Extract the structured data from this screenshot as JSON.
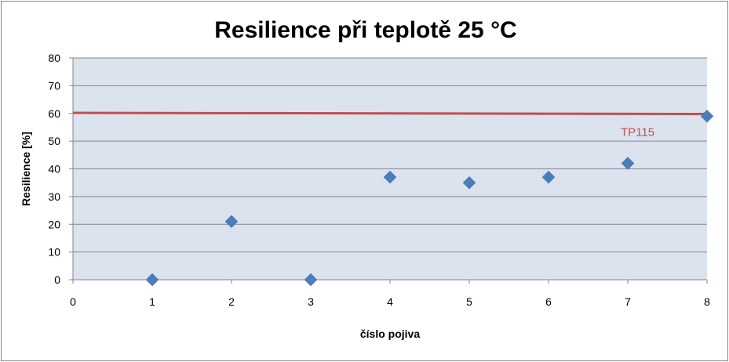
{
  "chart_data": {
    "type": "scatter",
    "title": "Resilience při teplotě 25 °C",
    "xlabel": "číslo pojiva",
    "ylabel": "Resilience [%]",
    "xlim": [
      0,
      8
    ],
    "ylim": [
      0,
      80
    ],
    "xticks": [
      0,
      1,
      2,
      3,
      4,
      5,
      6,
      7,
      8
    ],
    "yticks": [
      0,
      10,
      20,
      30,
      40,
      50,
      60,
      70,
      80
    ],
    "grid": true,
    "series": [
      {
        "marker": "diamond",
        "color": "#4a7ebb",
        "x": [
          1,
          2,
          3,
          4,
          5,
          6,
          7,
          8
        ],
        "y": [
          0,
          21,
          0,
          37,
          35,
          37,
          42,
          59
        ]
      }
    ],
    "reference_line": {
      "label": "TP115",
      "y_start": 60.2,
      "y_end": 59.8,
      "color": "#c0504d"
    },
    "plot_background": "#dbe3ef",
    "grid_color": "#868686"
  }
}
